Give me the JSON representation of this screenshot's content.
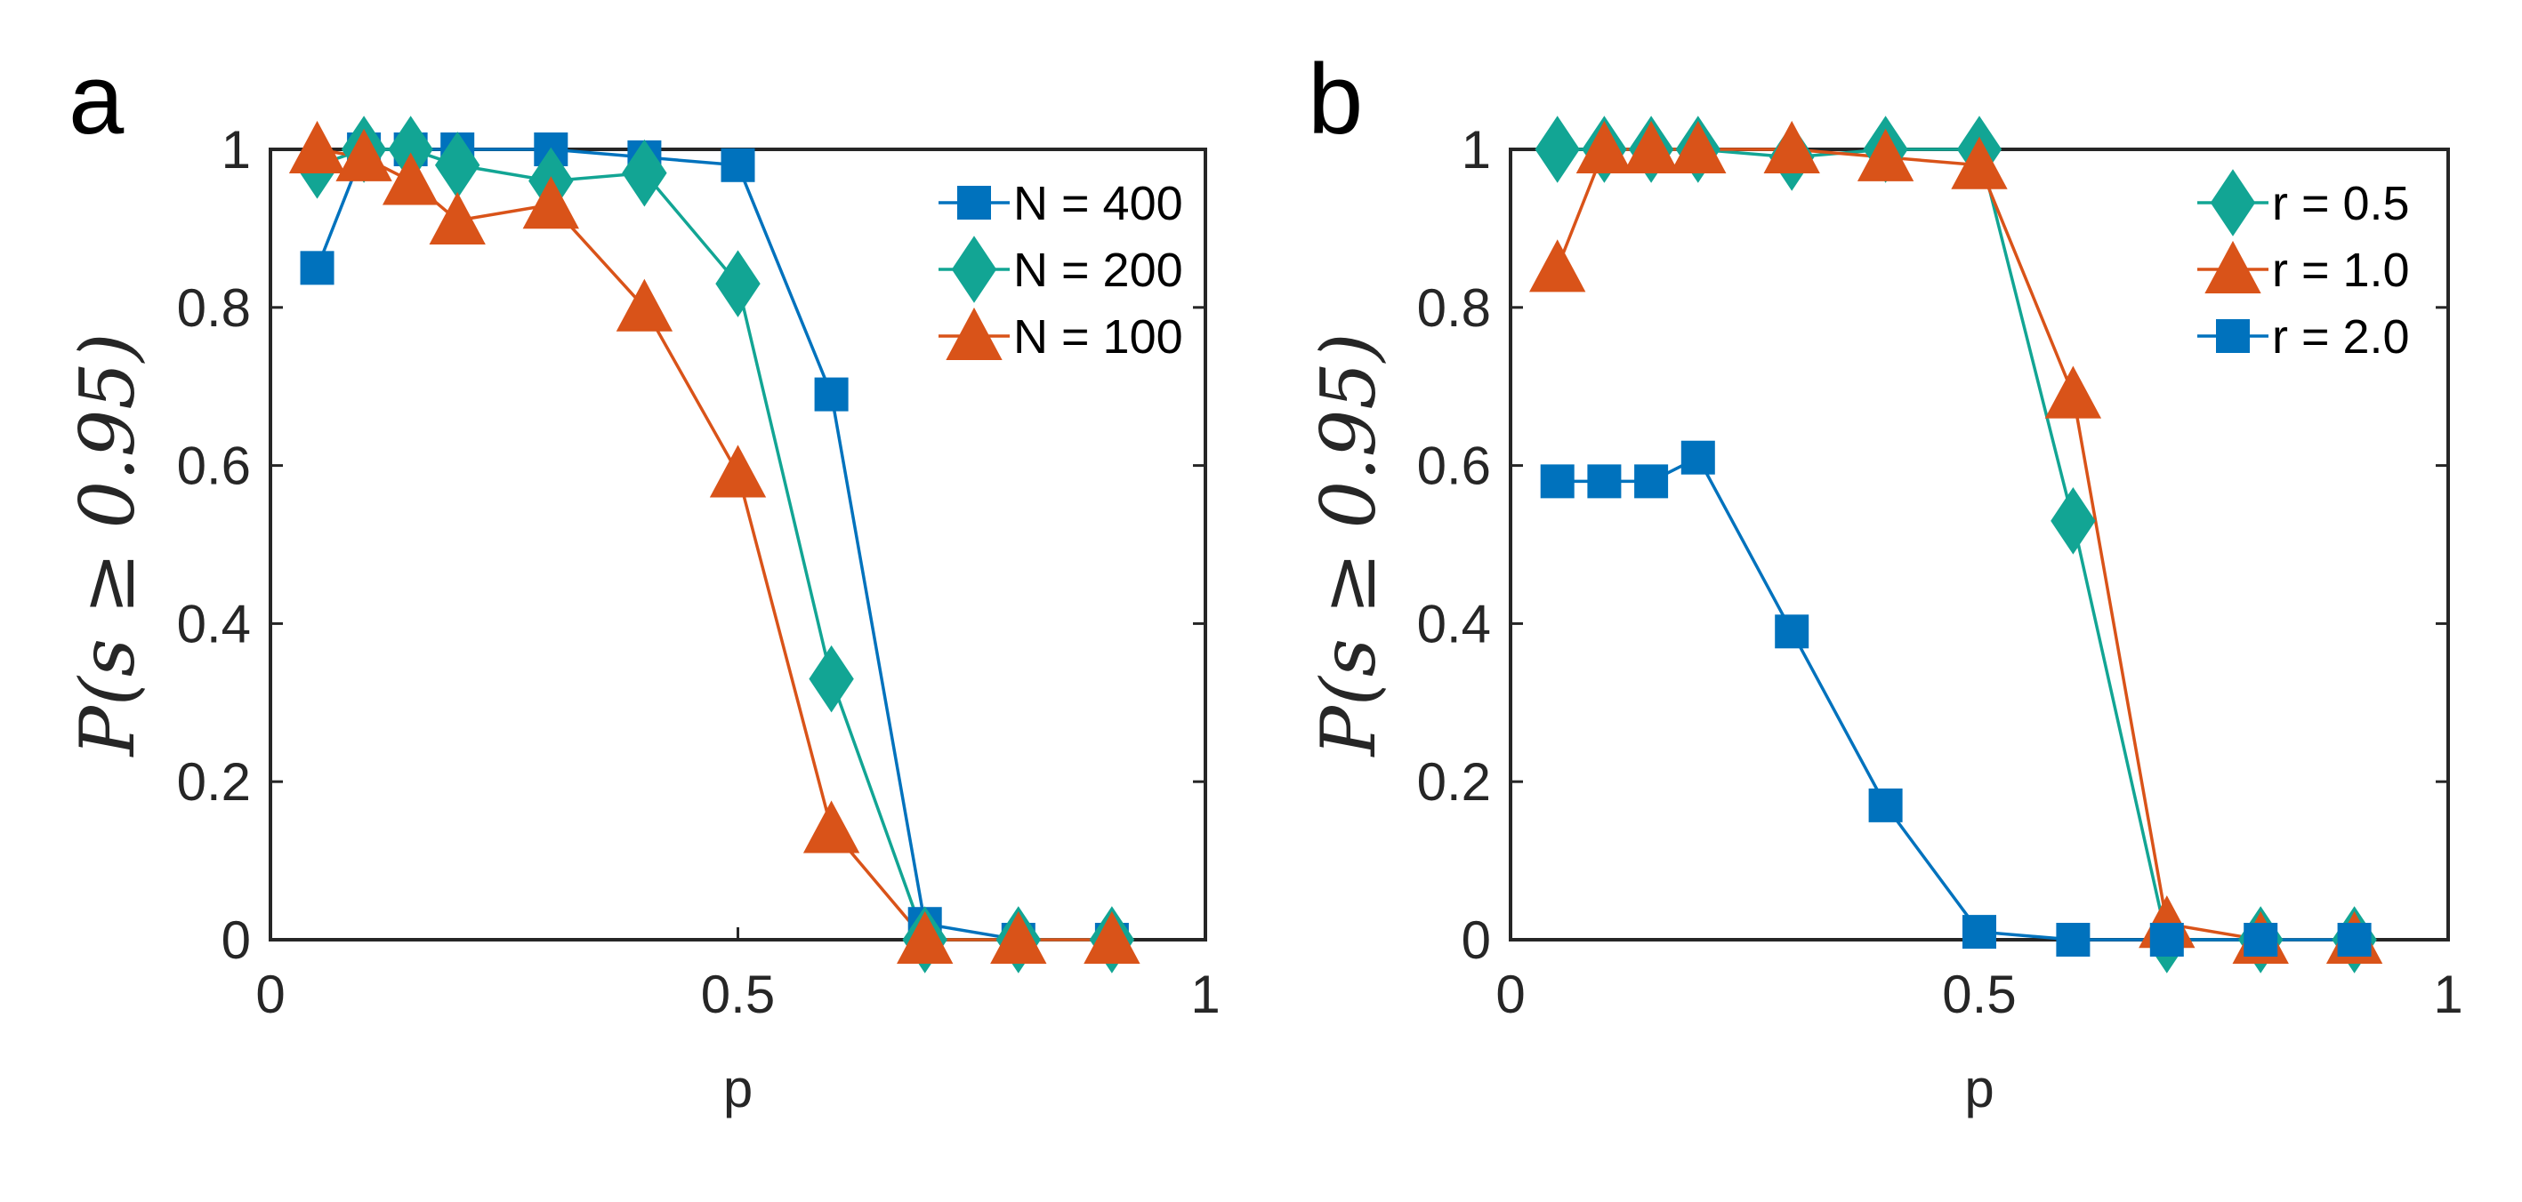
{
  "figure": {
    "colors": {
      "blue": "#0072BD",
      "teal": "#12A594",
      "orange": "#D95319",
      "axis": "#262626"
    }
  },
  "chart_data": [
    {
      "type": "line",
      "panel_label": "a",
      "title": "",
      "xlabel": "p",
      "ylabel": "P(s ≥ 0.95)",
      "xlim": [
        0,
        1
      ],
      "ylim": [
        0,
        1
      ],
      "xticks": [
        0,
        0.5,
        1
      ],
      "xtick_labels": [
        "0",
        "0.5",
        "1"
      ],
      "yticks": [
        0,
        0.2,
        0.4,
        0.6,
        0.8,
        1
      ],
      "ytick_labels": [
        "0",
        "0.2",
        "0.4",
        "0.6",
        "0.8",
        "1"
      ],
      "grid": false,
      "legend_position": "top-right",
      "series": [
        {
          "name": "N = 400",
          "marker": "square",
          "color": "#0072BD",
          "x": [
            0.05,
            0.1,
            0.15,
            0.2,
            0.3,
            0.4,
            0.5,
            0.6,
            0.7,
            0.8,
            0.9
          ],
          "y": [
            0.85,
            1.0,
            1.0,
            1.0,
            1.0,
            0.99,
            0.98,
            0.69,
            0.02,
            0.0,
            0.0
          ]
        },
        {
          "name": "N = 200",
          "marker": "diamond",
          "color": "#12A594",
          "x": [
            0.05,
            0.1,
            0.15,
            0.2,
            0.3,
            0.4,
            0.5,
            0.6,
            0.7,
            0.8,
            0.9
          ],
          "y": [
            0.98,
            1.0,
            1.0,
            0.98,
            0.96,
            0.97,
            0.83,
            0.33,
            0.0,
            0.0,
            0.0
          ]
        },
        {
          "name": "N = 100",
          "marker": "triangle",
          "color": "#D95319",
          "x": [
            0.05,
            0.1,
            0.15,
            0.2,
            0.3,
            0.4,
            0.5,
            0.6,
            0.7,
            0.8,
            0.9
          ],
          "y": [
            1.0,
            0.99,
            0.96,
            0.91,
            0.93,
            0.8,
            0.59,
            0.14,
            0.0,
            0.0,
            0.0
          ]
        }
      ]
    },
    {
      "type": "line",
      "panel_label": "b",
      "title": "",
      "xlabel": "p",
      "ylabel": "P(s ≥ 0.95)",
      "xlim": [
        0,
        1
      ],
      "ylim": [
        0,
        1
      ],
      "xticks": [
        0,
        0.5,
        1
      ],
      "xtick_labels": [
        "0",
        "0.5",
        "1"
      ],
      "yticks": [
        0,
        0.2,
        0.4,
        0.6,
        0.8,
        1
      ],
      "ytick_labels": [
        "0",
        "0.2",
        "0.4",
        "0.6",
        "0.8",
        "1"
      ],
      "grid": false,
      "legend_position": "top-right",
      "series": [
        {
          "name": "r = 0.5",
          "marker": "diamond",
          "color": "#12A594",
          "x": [
            0.05,
            0.1,
            0.15,
            0.2,
            0.3,
            0.4,
            0.5,
            0.6,
            0.7,
            0.8,
            0.9
          ],
          "y": [
            1.0,
            1.0,
            1.0,
            1.0,
            0.99,
            1.0,
            1.0,
            0.53,
            0.0,
            0.0,
            0.0
          ]
        },
        {
          "name": "r = 1.0",
          "marker": "triangle",
          "color": "#D95319",
          "x": [
            0.05,
            0.1,
            0.15,
            0.2,
            0.3,
            0.4,
            0.5,
            0.6,
            0.7,
            0.8,
            0.9
          ],
          "y": [
            0.85,
            1.0,
            1.0,
            1.0,
            1.0,
            0.99,
            0.98,
            0.69,
            0.02,
            0.0,
            0.0
          ]
        },
        {
          "name": "r = 2.0",
          "marker": "square",
          "color": "#0072BD",
          "x": [
            0.05,
            0.1,
            0.15,
            0.2,
            0.3,
            0.4,
            0.5,
            0.6,
            0.7,
            0.8,
            0.9
          ],
          "y": [
            0.58,
            0.58,
            0.58,
            0.61,
            0.39,
            0.17,
            0.01,
            0.0,
            0.0,
            0.0,
            0.0
          ]
        }
      ]
    }
  ]
}
